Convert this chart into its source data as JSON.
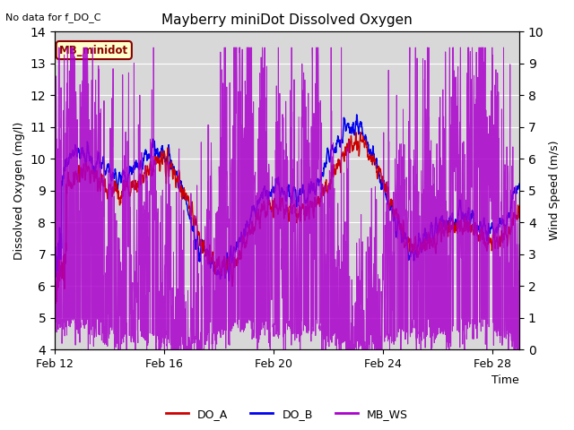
{
  "title": "Mayberry miniDot Dissolved Oxygen",
  "no_data_text": "No data for f_DO_C",
  "xlabel": "Time",
  "ylabel_left": "Dissolved Oxygen (mg/l)",
  "ylabel_right": "Wind Speed (m/s)",
  "ylim_left": [
    4.0,
    14.0
  ],
  "ylim_right": [
    0.0,
    10.0
  ],
  "yticks_left": [
    4.0,
    5.0,
    6.0,
    7.0,
    8.0,
    9.0,
    10.0,
    11.0,
    12.0,
    13.0,
    14.0
  ],
  "yticks_right": [
    0.0,
    1.0,
    2.0,
    3.0,
    4.0,
    5.0,
    6.0,
    7.0,
    8.0,
    9.0,
    10.0
  ],
  "xtick_labels": [
    "Feb 12",
    "Feb 16",
    "Feb 20",
    "Feb 24",
    "Feb 28"
  ],
  "xtick_positions": [
    0,
    4,
    8,
    12,
    16
  ],
  "color_DO_A": "#cc0000",
  "color_DO_B": "#0000ee",
  "color_MB_WS": "#aa00cc",
  "legend_label_A": "DO_A",
  "legend_label_B": "DO_B",
  "legend_label_WS": "MB_WS",
  "legend_box_label": "MB_minidot",
  "plot_bg_color": "#d8d8d8",
  "grid_color": "#ffffff",
  "fig_bg_color": "#ffffff",
  "n_points": 2000,
  "xlim": [
    0,
    17
  ]
}
